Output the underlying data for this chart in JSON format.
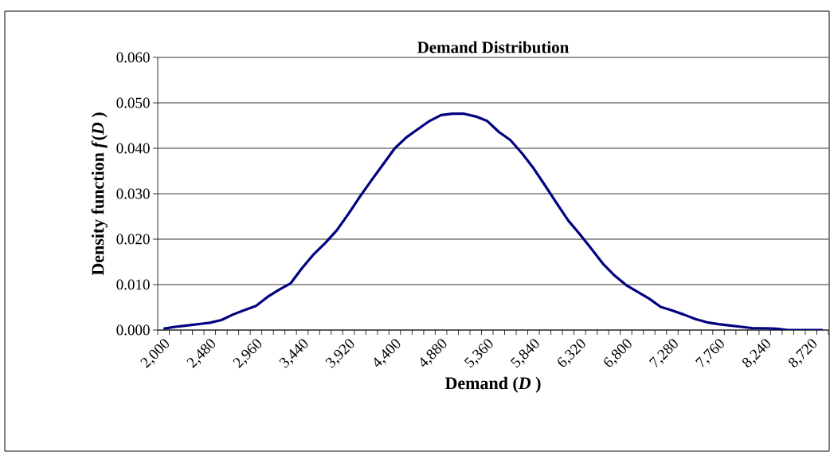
{
  "chart_data": {
    "type": "line",
    "title": "Demand Distribution",
    "xlabel": "Demand (*D* )",
    "ylabel": "Density function *f*(*D* )",
    "categories": [
      "2,000",
      null,
      null,
      null,
      "2,480",
      null,
      null,
      null,
      "2,960",
      null,
      null,
      null,
      "3,440",
      null,
      null,
      null,
      "3,920",
      null,
      null,
      null,
      "4,400",
      null,
      null,
      null,
      "4,880",
      null,
      null,
      null,
      "5,360",
      null,
      null,
      null,
      "5,840",
      null,
      null,
      null,
      "6,320",
      null,
      null,
      null,
      "6,800",
      null,
      null,
      null,
      "7,280",
      null,
      null,
      null,
      "7,760",
      null,
      null,
      null,
      "8,240",
      null,
      null,
      null,
      "8,720",
      null
    ],
    "series": [
      {
        "color": "#000080",
        "values": [
          0.0003,
          0.0007,
          0.001,
          0.0013,
          0.0016,
          0.0022,
          0.0034,
          0.0044,
          0.0053,
          0.0073,
          0.0089,
          0.0103,
          0.0137,
          0.0167,
          0.0192,
          0.022,
          0.0256,
          0.0294,
          0.033,
          0.0365,
          0.04,
          0.0424,
          0.0442,
          0.046,
          0.0473,
          0.0476,
          0.0476,
          0.047,
          0.046,
          0.0436,
          0.0418,
          0.0389,
          0.0356,
          0.0318,
          0.0279,
          0.0241,
          0.0211,
          0.0179,
          0.0146,
          0.012,
          0.0099,
          0.0084,
          0.0069,
          0.0051,
          0.0043,
          0.0034,
          0.0024,
          0.0017,
          0.0013,
          0.001,
          0.0007,
          0.0004,
          0.0004,
          0.0003,
          0.0,
          0.0,
          0.0,
          0.0
        ]
      }
    ],
    "ylim": [
      0,
      0.06
    ],
    "yticks": [
      {
        "value": 0,
        "label": "0.000"
      },
      {
        "value": 0.01,
        "label": "0.010"
      },
      {
        "value": 0.02,
        "label": "0.020"
      },
      {
        "value": 0.03,
        "label": "0.030"
      },
      {
        "value": 0.04,
        "label": "0.040"
      },
      {
        "value": 0.05,
        "label": "0.050"
      },
      {
        "value": 0.06,
        "label": "0.060"
      }
    ],
    "grid": "y"
  }
}
